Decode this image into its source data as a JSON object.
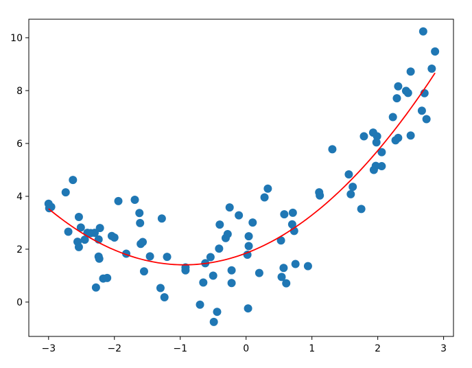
{
  "chart_data": {
    "type": "scatter",
    "title": "",
    "xlabel": "",
    "ylabel": "",
    "xlim": [
      -3.3,
      3.15
    ],
    "ylim": [
      -1.3,
      10.7
    ],
    "grid": false,
    "x_ticks": [
      -3,
      -2,
      -1,
      0,
      1,
      2,
      3
    ],
    "x_tick_labels": [
      "−3",
      "−2",
      "−1",
      "0",
      "1",
      "2",
      "3"
    ],
    "y_ticks": [
      0,
      2,
      4,
      6,
      8,
      10
    ],
    "y_tick_labels": [
      "0",
      "2",
      "4",
      "6",
      "8",
      "10"
    ],
    "scatter_color": "#1f77b4",
    "fit_color": "#ff0000",
    "points": [
      [
        -3.0,
        3.72
      ],
      [
        -2.99,
        3.55
      ],
      [
        -2.96,
        3.6
      ],
      [
        -2.74,
        4.15
      ],
      [
        -2.7,
        2.66
      ],
      [
        -2.63,
        4.62
      ],
      [
        -2.56,
        2.28
      ],
      [
        -2.54,
        2.08
      ],
      [
        -2.54,
        3.22
      ],
      [
        -2.51,
        2.82
      ],
      [
        -2.45,
        2.36
      ],
      [
        -2.41,
        2.62
      ],
      [
        -2.36,
        2.61
      ],
      [
        -2.3,
        2.62
      ],
      [
        -2.28,
        0.55
      ],
      [
        -2.24,
        2.37
      ],
      [
        -2.24,
        1.72
      ],
      [
        -2.23,
        1.64
      ],
      [
        -2.22,
        2.8
      ],
      [
        -2.17,
        0.89
      ],
      [
        -2.11,
        0.91
      ],
      [
        -2.04,
        2.5
      ],
      [
        -2.0,
        2.44
      ],
      [
        -1.94,
        3.82
      ],
      [
        -1.82,
        1.83
      ],
      [
        -1.69,
        3.87
      ],
      [
        -1.62,
        3.37
      ],
      [
        -1.61,
        2.99
      ],
      [
        -1.6,
        2.2
      ],
      [
        -1.57,
        2.27
      ],
      [
        -1.55,
        1.16
      ],
      [
        -1.46,
        1.73
      ],
      [
        -1.3,
        0.53
      ],
      [
        -1.28,
        3.16
      ],
      [
        -1.24,
        0.18
      ],
      [
        -1.2,
        1.71
      ],
      [
        -0.92,
        1.31
      ],
      [
        -0.92,
        1.2
      ],
      [
        -0.7,
        -0.1
      ],
      [
        -0.65,
        0.74
      ],
      [
        -0.62,
        1.47
      ],
      [
        -0.54,
        1.7
      ],
      [
        -0.5,
        1.0
      ],
      [
        -0.49,
        -0.75
      ],
      [
        -0.44,
        -0.37
      ],
      [
        -0.41,
        2.02
      ],
      [
        -0.4,
        2.93
      ],
      [
        -0.31,
        2.42
      ],
      [
        -0.28,
        2.57
      ],
      [
        -0.25,
        3.58
      ],
      [
        -0.22,
        1.2
      ],
      [
        -0.22,
        0.72
      ],
      [
        -0.11,
        3.28
      ],
      [
        0.02,
        1.79
      ],
      [
        0.03,
        -0.24
      ],
      [
        0.04,
        2.49
      ],
      [
        0.04,
        2.12
      ],
      [
        0.1,
        3.01
      ],
      [
        0.2,
        1.1
      ],
      [
        0.28,
        3.96
      ],
      [
        0.33,
        4.29
      ],
      [
        0.53,
        2.33
      ],
      [
        0.54,
        0.95
      ],
      [
        0.57,
        1.29
      ],
      [
        0.58,
        3.32
      ],
      [
        0.61,
        0.71
      ],
      [
        0.7,
        2.94
      ],
      [
        0.71,
        3.38
      ],
      [
        0.73,
        2.69
      ],
      [
        0.75,
        1.44
      ],
      [
        0.94,
        1.36
      ],
      [
        1.11,
        4.15
      ],
      [
        1.12,
        4.03
      ],
      [
        1.31,
        5.78
      ],
      [
        1.56,
        4.83
      ],
      [
        1.59,
        4.08
      ],
      [
        1.62,
        4.36
      ],
      [
        1.75,
        3.52
      ],
      [
        1.79,
        6.27
      ],
      [
        1.93,
        6.41
      ],
      [
        1.94,
        5.0
      ],
      [
        1.97,
        5.15
      ],
      [
        1.98,
        6.04
      ],
      [
        1.99,
        6.27
      ],
      [
        2.06,
        5.67
      ],
      [
        2.06,
        5.14
      ],
      [
        2.23,
        7.0
      ],
      [
        2.27,
        6.12
      ],
      [
        2.29,
        7.71
      ],
      [
        2.31,
        6.21
      ],
      [
        2.31,
        8.16
      ],
      [
        2.43,
        7.99
      ],
      [
        2.46,
        7.91
      ],
      [
        2.5,
        8.72
      ],
      [
        2.5,
        6.3
      ],
      [
        2.67,
        7.24
      ],
      [
        2.69,
        10.24
      ],
      [
        2.71,
        7.9
      ],
      [
        2.74,
        6.92
      ],
      [
        2.82,
        8.83
      ],
      [
        2.87,
        9.48
      ]
    ],
    "fit": {
      "type": "quadratic",
      "coefficients": [
        0.5,
        0.94,
        1.85
      ],
      "x_range": [
        -3.0,
        2.87
      ]
    }
  }
}
